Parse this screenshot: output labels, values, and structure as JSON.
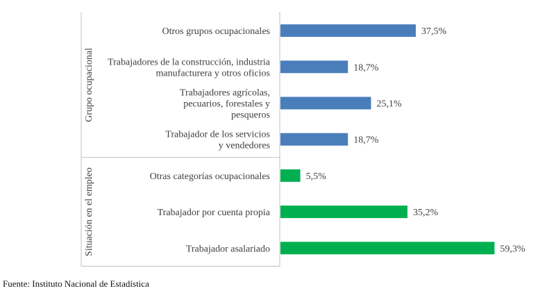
{
  "chart_data": {
    "type": "bar",
    "orientation": "horizontal",
    "title": "",
    "xlabel": "",
    "ylabel": "",
    "xlim": [
      0,
      60
    ],
    "grid": false,
    "legend": "none",
    "groups": [
      {
        "name": "Grupo ocupacional",
        "color": "#4a7ebb",
        "categories": [
          [
            "Otros grupos ocupacionales"
          ],
          [
            "Trabajadores de la construcción, industria",
            "manufacturera y otros oficios"
          ],
          [
            "Trabajadores agrícolas,",
            "pecuarios, forestales y",
            "pesqueros"
          ],
          [
            "Trabajador de los servicios",
            "y vendedores"
          ]
        ],
        "values": [
          37.5,
          18.7,
          25.1,
          18.7
        ],
        "labels": [
          "37,5%",
          "18,7%",
          "25,1%",
          "18,7%"
        ]
      },
      {
        "name": "Situación en el empleo",
        "color": "#00b050",
        "categories": [
          [
            "Otras categorías  ocupacionales"
          ],
          [
            "Trabajador por cuenta propia"
          ],
          [
            "Trabajador asalariado"
          ]
        ],
        "values": [
          5.5,
          35.2,
          59.3
        ],
        "labels": [
          "5,5%",
          "35,2%",
          "59,3%"
        ]
      }
    ]
  },
  "source": "Fuente: Instituto Nacional de Estadística"
}
